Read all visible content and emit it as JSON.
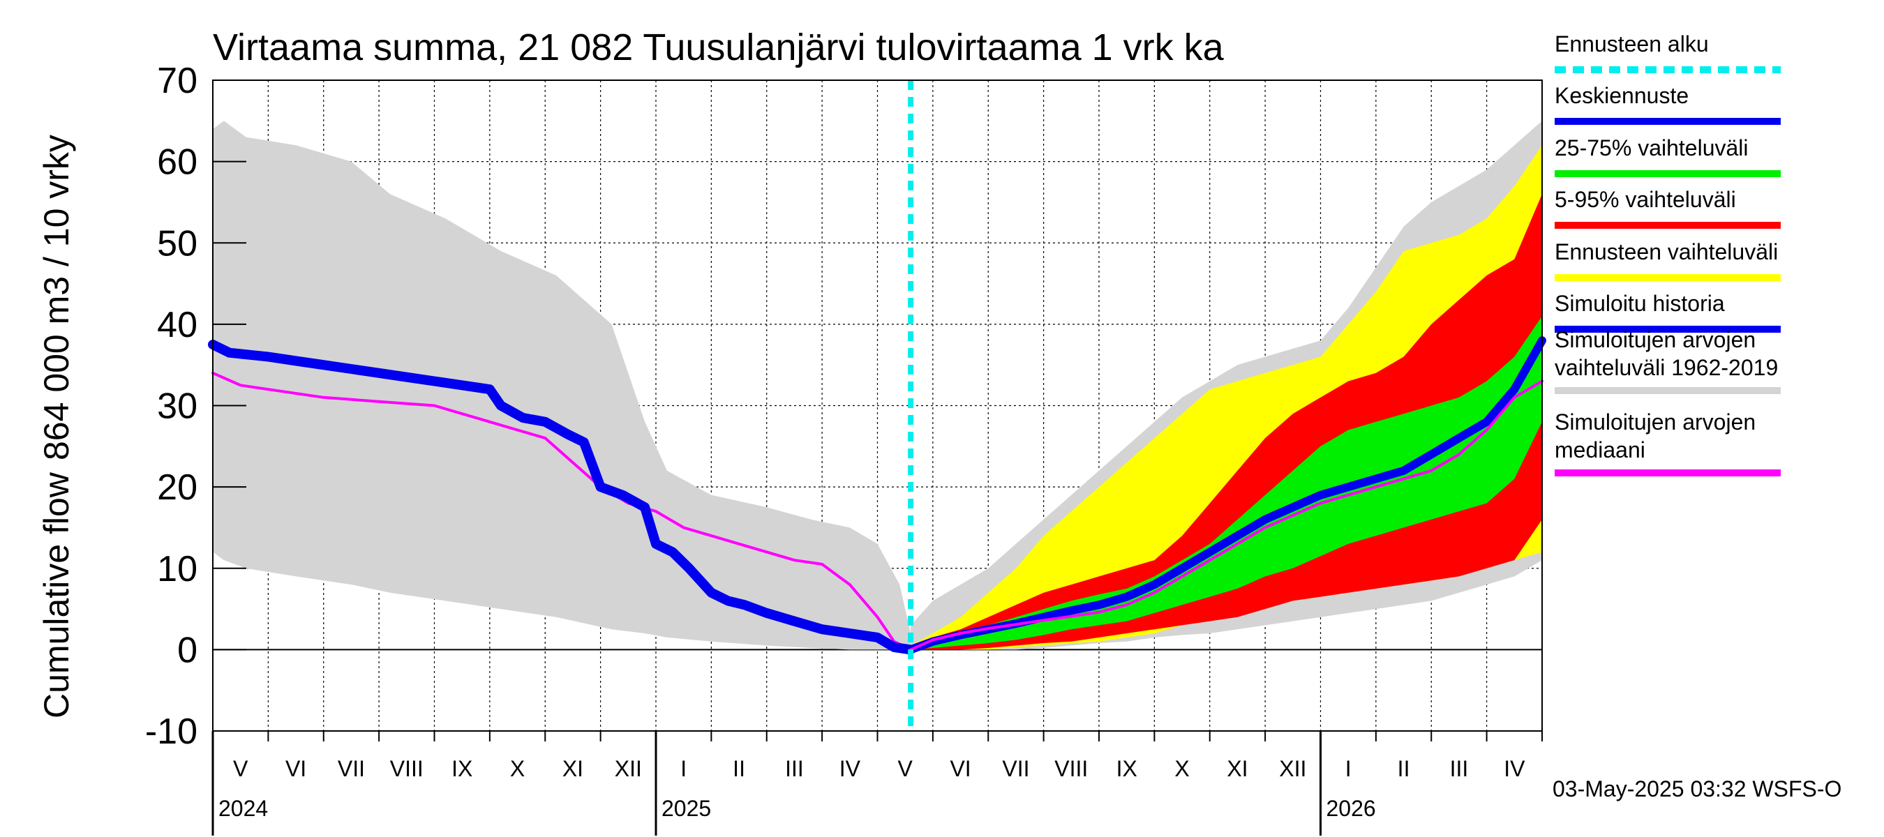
{
  "chart_data": {
    "type": "area",
    "title": "Virtaama summa, 21 082 Tuusulanjärvi tulovirtaama 1 vrk ka",
    "ylabel_line1": "Cumulative flow",
    "ylabel_line2": "864 000 m3 / 10 vrky",
    "ylim": [
      -10,
      70
    ],
    "yticks": [
      -10,
      0,
      10,
      20,
      30,
      40,
      50,
      60,
      70
    ],
    "x_unit": "months since 2024-04-15",
    "xlim": [
      0,
      24
    ],
    "forecast_start": 12.6,
    "grid": true,
    "months": [
      "V",
      "VI",
      "VII",
      "VIII",
      "IX",
      "X",
      "XI",
      "XII",
      "I",
      "II",
      "III",
      "IV",
      "V",
      "VI",
      "VII",
      "VIII",
      "IX",
      "X",
      "XI",
      "XII",
      "I",
      "II",
      "III",
      "IV"
    ],
    "years": [
      {
        "label": "2024",
        "month_index": 0
      },
      {
        "label": "2025",
        "month_index": 8
      },
      {
        "label": "2026",
        "month_index": 20
      }
    ],
    "series": {
      "hist_range": {
        "x": [
          0,
          0.2,
          0.6,
          1.5,
          2.5,
          3.2,
          4.2,
          5.2,
          6.2,
          7.2,
          7.8,
          8.2,
          9.0,
          10.0,
          10.8,
          11.5,
          12.0,
          12.4,
          12.6
        ],
        "upper": [
          64,
          65,
          63,
          62,
          60,
          56,
          53,
          49,
          46,
          40,
          28,
          22,
          19,
          17.5,
          16,
          15,
          13,
          8,
          2
        ],
        "lower": [
          12,
          11,
          10,
          9,
          8,
          7,
          6,
          5,
          4,
          2.5,
          2,
          1.5,
          1,
          0.5,
          0.2,
          0,
          0,
          0,
          0
        ]
      },
      "hist_median": {
        "x": [
          0,
          0.5,
          1,
          2,
          3,
          4,
          5,
          5.5,
          6,
          6.5,
          7,
          7.5,
          8,
          8.5,
          9,
          9.5,
          10,
          10.5,
          11,
          11.5,
          12,
          12.3,
          12.6
        ],
        "y": [
          34,
          32.5,
          32,
          31,
          30.5,
          30,
          28,
          27,
          26,
          23,
          20,
          18,
          17,
          15,
          14,
          13,
          12,
          11,
          10.5,
          8,
          4,
          1,
          0
        ]
      },
      "sim_history": {
        "x": [
          0,
          0.3,
          1,
          1.5,
          2,
          2.5,
          3,
          3.5,
          4,
          4.5,
          5,
          5.2,
          5.6,
          6,
          6.4,
          6.7,
          7,
          7.4,
          7.8,
          8.0,
          8.3,
          8.6,
          9,
          9.3,
          9.6,
          10,
          10.5,
          11,
          11.5,
          12,
          12.3,
          12.6
        ],
        "y": [
          37.5,
          36.5,
          36,
          35.5,
          35,
          34.5,
          34,
          33.5,
          33,
          32.5,
          32,
          30,
          28.5,
          28,
          26.5,
          25.5,
          20,
          19,
          17.5,
          13,
          12,
          10,
          7,
          6,
          5.5,
          4.5,
          3.5,
          2.5,
          2,
          1.5,
          0.3,
          0
        ]
      },
      "forecast_x": [
        12.6,
        13,
        13.5,
        14,
        14.5,
        15,
        15.5,
        16,
        16.5,
        17,
        17.5,
        18,
        18.5,
        19,
        19.5,
        20,
        20.5,
        21,
        21.5,
        22,
        22.5,
        23,
        23.5,
        24
      ],
      "forecast_hist_upper": [
        3,
        6,
        8,
        10,
        13,
        16,
        19,
        22,
        25,
        28,
        31,
        33,
        35,
        36,
        37,
        38,
        42,
        47,
        52,
        55,
        57,
        59,
        62,
        65
      ],
      "forecast_hist_lower": [
        0,
        0,
        0,
        0,
        0,
        0.2,
        0.5,
        0.8,
        1,
        1.5,
        1.8,
        2,
        2.5,
        3,
        3.5,
        4,
        4.5,
        5,
        5.5,
        6,
        7,
        8,
        9,
        11
      ],
      "ens_upper": [
        0.5,
        2,
        4,
        7,
        10,
        14,
        17,
        20,
        23,
        26,
        29,
        32,
        33,
        34,
        35,
        36,
        40,
        44,
        49,
        50,
        51,
        53,
        57,
        62
      ],
      "ens_lower": [
        0,
        0,
        0,
        0,
        0.3,
        0.5,
        0.8,
        1,
        1.5,
        2,
        3,
        4,
        5,
        5.5,
        6,
        6.5,
        7,
        7.5,
        8,
        8.5,
        9,
        10,
        11,
        12
      ],
      "p95": [
        0.3,
        1.5,
        2.5,
        4,
        5.5,
        7,
        8,
        9,
        10,
        11,
        14,
        18,
        22,
        26,
        29,
        31,
        33,
        34,
        36,
        40,
        43,
        46,
        48,
        56
      ],
      "p5": [
        0,
        0,
        0,
        0.2,
        0.5,
        0.8,
        1,
        1.5,
        2,
        2.5,
        3,
        3.5,
        4,
        5,
        6,
        6.5,
        7,
        7.5,
        8,
        8.5,
        9,
        10,
        11,
        16
      ],
      "p75": [
        0.2,
        1.2,
        2,
        3,
        4,
        5,
        6,
        6.8,
        7.5,
        9,
        11,
        13,
        16,
        19,
        22,
        25,
        27,
        28,
        29,
        30,
        31,
        33,
        36,
        41
      ],
      "p25": [
        0,
        0.2,
        0.5,
        0.8,
        1.2,
        1.8,
        2.5,
        3,
        3.5,
        4.5,
        5.5,
        6.5,
        7.5,
        9,
        10,
        11.5,
        13,
        14,
        15,
        16,
        17,
        18,
        21,
        28
      ],
      "mean": [
        0,
        1,
        1.8,
        2.5,
        3.2,
        4,
        4.8,
        5.5,
        6.5,
        8,
        10,
        12,
        14,
        16,
        17.5,
        19,
        20,
        21,
        22,
        24,
        26,
        28,
        32,
        38
      ],
      "forecast_median": [
        0,
        1.2,
        2,
        2.6,
        3.1,
        3.6,
        4.1,
        4.6,
        5.5,
        7,
        9,
        11,
        13,
        15,
        16.5,
        18,
        19,
        20,
        21,
        22,
        24,
        27,
        31,
        33
      ]
    },
    "colors": {
      "hist_range": "#d4d4d4",
      "ensemble": "#ffff00",
      "p5_95": "#ff0000",
      "p25_75": "#00ee00",
      "mean": "#0000ee",
      "median": "#ff00ff",
      "forecast_start": "#00eeee",
      "grid": "#000000"
    },
    "legend": [
      {
        "label": "Ennusteen alku",
        "color": "#00eeee",
        "style": "dashed"
      },
      {
        "label": "Keskiennuste",
        "color": "#0000ee",
        "style": "solid"
      },
      {
        "label": "25-75% vaihteluväli",
        "color": "#00ee00",
        "style": "solid"
      },
      {
        "label": "5-95% vaihteluväli",
        "color": "#ff0000",
        "style": "solid"
      },
      {
        "label": "Ennusteen vaihteluväli",
        "color": "#ffff00",
        "style": "solid"
      },
      {
        "label": "Simuloitu historia",
        "color": "#0000ee",
        "style": "solid"
      },
      {
        "label": "Simuloitujen arvojen vaihteluväli 1962-2019",
        "color": "#d4d4d4",
        "style": "solid"
      },
      {
        "label": "Simuloitujen arvojen mediaani",
        "color": "#ff00ff",
        "style": "solid"
      }
    ]
  },
  "footer": "03-May-2025 03:32 WSFS-O"
}
